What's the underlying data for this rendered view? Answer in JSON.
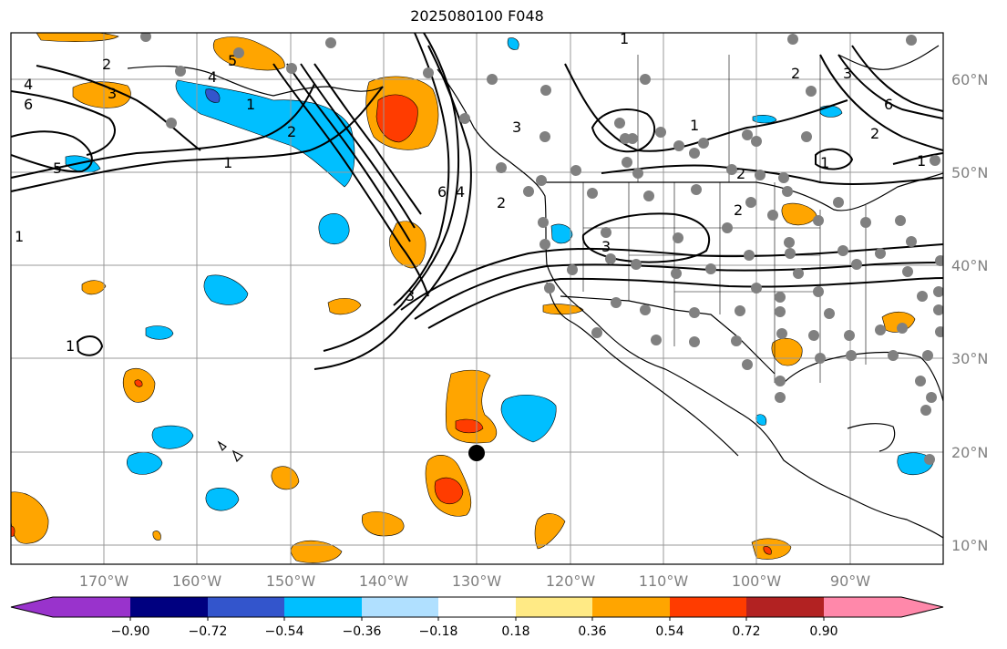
{
  "title": "2025080100 F048",
  "lon_labels": [
    "170°W",
    "160°W",
    "150°W",
    "140°W",
    "130°W",
    "120°W",
    "110°W",
    "100°W",
    "90°W"
  ],
  "lat_labels": [
    "60°N",
    "50°N",
    "40°N",
    "30°N",
    "20°N",
    "10°N"
  ],
  "colorbar": {
    "ticks": [
      "−0.90",
      "−0.72",
      "−0.54",
      "−0.36",
      "−0.18",
      "0.18",
      "0.36",
      "0.54",
      "0.72",
      "0.90"
    ],
    "colors": [
      "#9933cc",
      "#000080",
      "#3355cc",
      "#00bfff",
      "#b0e0ff",
      "#ffffff",
      "#ffea85",
      "#ffa500",
      "#ff3c00",
      "#b22222",
      "#ff88aa"
    ]
  },
  "contour_labels": [
    "1",
    "2",
    "3",
    "4",
    "5",
    "6"
  ],
  "point_marker": {
    "label": "black dot",
    "lon": -130,
    "lat": 20
  }
}
